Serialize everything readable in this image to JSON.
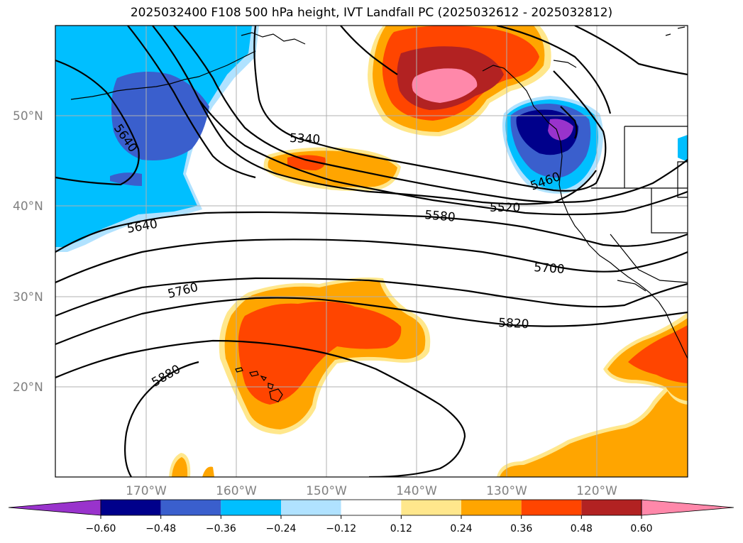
{
  "title": "2025032400 F108 500 hPa height, IVT Landfall PC (2025032612 - 2025032812)",
  "lat_labels": [
    "50°N",
    "40°N",
    "30°N",
    "20°N"
  ],
  "lon_labels": [
    "170°W",
    "160°W",
    "150°W",
    "140°W",
    "130°W",
    "120°W"
  ],
  "contour_labels": [
    "5640",
    "5340",
    "5460",
    "5520",
    "5580",
    "5640",
    "5700",
    "5760",
    "5820",
    "5880"
  ],
  "colorbar": {
    "ticks": [
      "−0.60",
      "−0.48",
      "−0.36",
      "−0.24",
      "−0.12",
      "0.12",
      "0.24",
      "0.36",
      "0.48",
      "0.60"
    ],
    "colors": [
      "#9933cc",
      "#00008b",
      "#3a5fcd",
      "#00bfff",
      "#b0e2ff",
      "#ffffff",
      "#ffe78c",
      "#ffa500",
      "#ff4500",
      "#b22222",
      "#ff88aa"
    ]
  },
  "fill_colors": {
    "neg_light": "#b0e2ff",
    "neg_cyan": "#00bfff",
    "neg_blue": "#3a5fcd",
    "neg_navy": "#00008b",
    "neg_purple": "#9933cc",
    "pos_yellow": "#ffe78c",
    "pos_orange": "#ffa500",
    "pos_redorange": "#ff4500",
    "pos_red": "#b22222",
    "pos_pink": "#ff88aa"
  }
}
